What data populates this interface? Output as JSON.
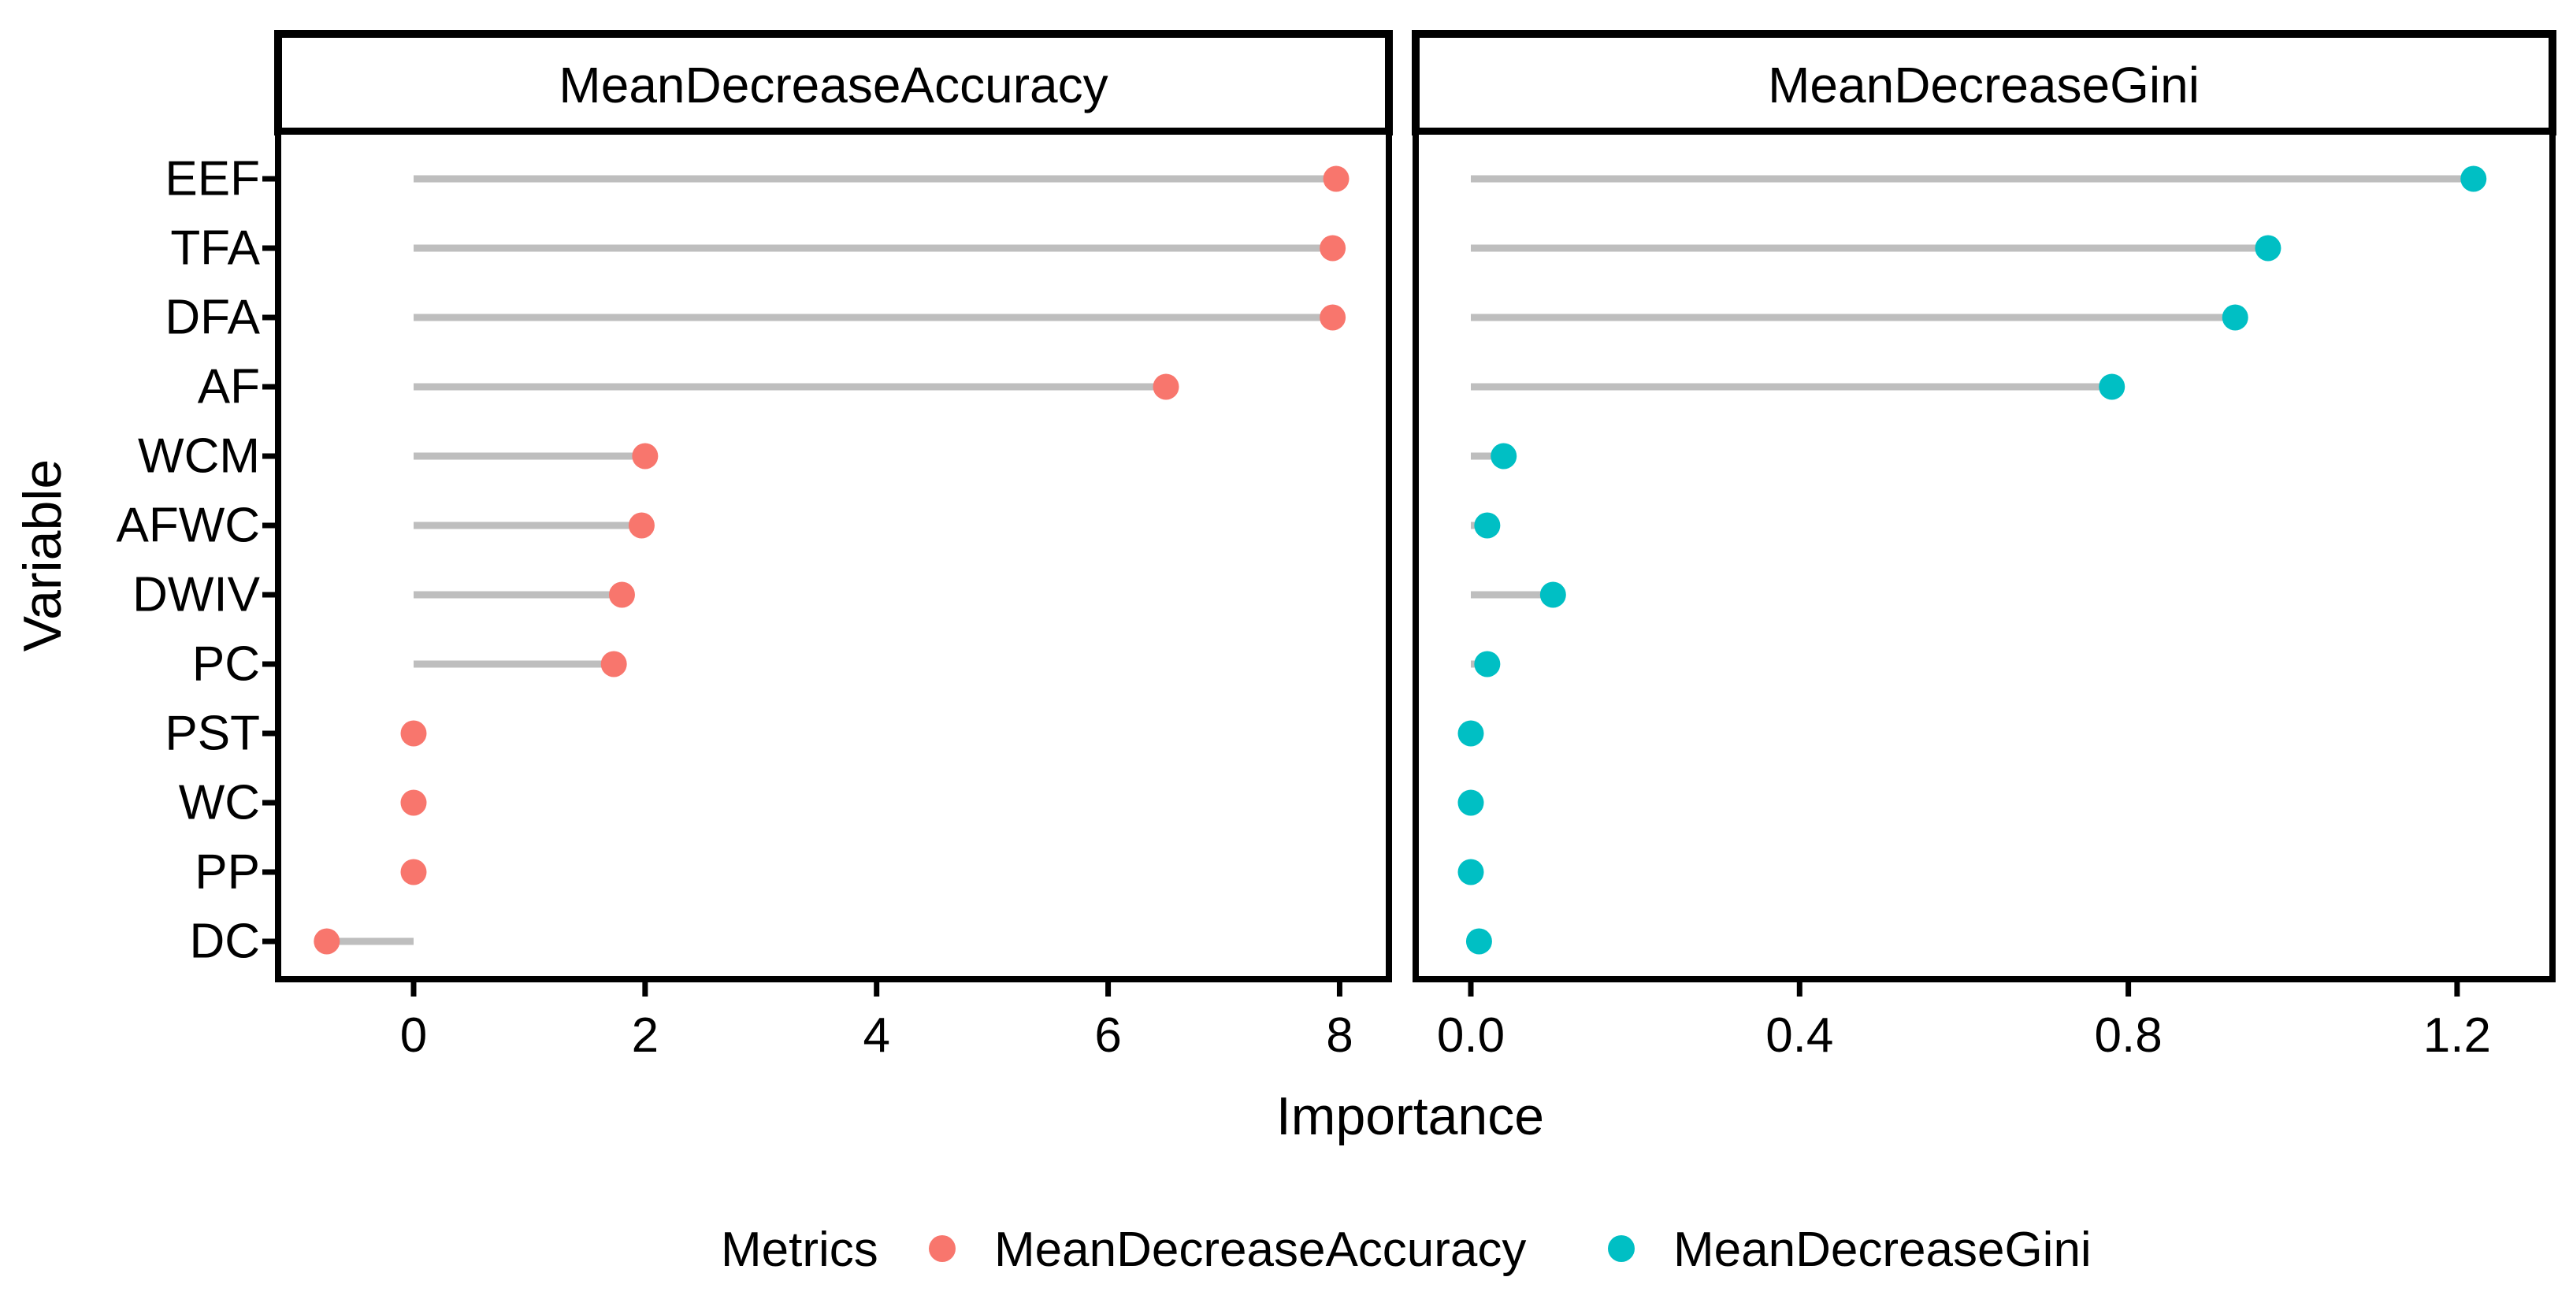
{
  "chart_data": {
    "type": "scatter",
    "style": "faceted horizontal lollipop (Cleveland dot plot)",
    "categories": [
      "EEF",
      "TFA",
      "DFA",
      "AF",
      "WCM",
      "AFWC",
      "DWIV",
      "PC",
      "PST",
      "WC",
      "PP",
      "DC"
    ],
    "series": [
      {
        "name": "MeanDecreaseAccuracy",
        "color": "#F8766D",
        "values": [
          7.97,
          7.94,
          7.94,
          6.5,
          2.0,
          1.97,
          1.8,
          1.73,
          0.0,
          0.0,
          0.0,
          -0.75
        ]
      },
      {
        "name": "MeanDecreaseGini",
        "color": "#00BFC4",
        "values": [
          1.22,
          0.97,
          0.93,
          0.78,
          0.04,
          0.02,
          0.1,
          0.02,
          0.0,
          0.0,
          0.0,
          0.01
        ]
      }
    ],
    "facets": [
      {
        "title": "MeanDecreaseAccuracy",
        "xlim": [
          -1.17,
          8.43
        ],
        "ticks": [
          {
            "label": "0",
            "value": 0
          },
          {
            "label": "2",
            "value": 2
          },
          {
            "label": "4",
            "value": 4
          },
          {
            "label": "6",
            "value": 6
          },
          {
            "label": "8",
            "value": 8
          }
        ]
      },
      {
        "title": "MeanDecreaseGini",
        "xlim": [
          -0.067,
          1.316
        ],
        "ticks": [
          {
            "label": "0.0",
            "value": 0.0
          },
          {
            "label": "0.4",
            "value": 0.4
          },
          {
            "label": "0.8",
            "value": 0.8
          },
          {
            "label": "1.2",
            "value": 1.2
          }
        ]
      }
    ],
    "xlabel": "Importance",
    "ylabel": "Variable",
    "grid": false,
    "segment_color": "#bebebe",
    "panel_border_color": "#000000",
    "legend": {
      "title": "Metrics",
      "position": "bottom",
      "entries": [
        {
          "label": "MeanDecreaseAccuracy",
          "color": "#F8766D"
        },
        {
          "label": "MeanDecreaseGini",
          "color": "#00BFC4"
        }
      ]
    }
  }
}
